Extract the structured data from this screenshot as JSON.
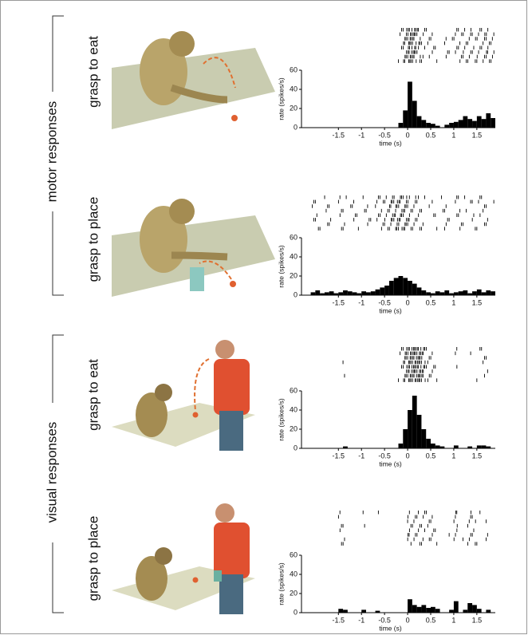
{
  "groups": [
    "motor responses",
    "visual responses"
  ],
  "chart_data": [
    {
      "type": "histogram",
      "title": "grasp to eat",
      "xlabel": "time (s)",
      "ylabel": "rate (spikes/s)",
      "color": "#000000",
      "bins": [
        -2.3,
        -2.2,
        -2.1,
        -2.0,
        -1.9,
        -1.8,
        -1.7,
        -1.6,
        -1.5,
        -1.4,
        -1.3,
        -1.2,
        -1.1,
        -1.0,
        -0.9,
        -0.8,
        -0.7,
        -0.6,
        -0.5,
        -0.4,
        -0.3,
        -0.2,
        -0.1,
        0.0,
        0.1,
        0.2,
        0.3,
        0.4,
        0.5,
        0.6,
        0.7,
        0.8,
        0.9,
        1.0,
        1.1,
        1.2,
        1.3,
        1.4,
        1.5,
        1.6,
        1.7,
        1.8,
        1.9
      ],
      "values": [
        0,
        0,
        0,
        0,
        0,
        0,
        0,
        0,
        0,
        0,
        0,
        0,
        0,
        0,
        0,
        0,
        0,
        0,
        0,
        0,
        0,
        5,
        18,
        48,
        28,
        12,
        8,
        5,
        4,
        2,
        0,
        3,
        5,
        6,
        8,
        12,
        9,
        7,
        12,
        9,
        15,
        10
      ],
      "xlim": [
        -2.3,
        1.9
      ],
      "ylim": [
        0,
        60
      ],
      "xticks": [
        -1.5,
        -1,
        -0.5,
        0,
        0.5,
        1,
        1.5
      ],
      "yticks": [
        0,
        20,
        40,
        60
      ]
    },
    {
      "type": "histogram",
      "title": "grasp to place",
      "xlabel": "time (s)",
      "ylabel": "rate (spikes/s)",
      "color": "#000000",
      "bins": [
        -2.3,
        -2.2,
        -2.1,
        -2.0,
        -1.9,
        -1.8,
        -1.7,
        -1.6,
        -1.5,
        -1.4,
        -1.3,
        -1.2,
        -1.1,
        -1.0,
        -0.9,
        -0.8,
        -0.7,
        -0.6,
        -0.5,
        -0.4,
        -0.3,
        -0.2,
        -0.1,
        0.0,
        0.1,
        0.2,
        0.3,
        0.4,
        0.5,
        0.6,
        0.7,
        0.8,
        0.9,
        1.0,
        1.1,
        1.2,
        1.3,
        1.4,
        1.5,
        1.6,
        1.7,
        1.8,
        1.9
      ],
      "values": [
        0,
        0,
        3,
        5,
        2,
        3,
        4,
        2,
        3,
        5,
        4,
        3,
        2,
        4,
        3,
        4,
        6,
        8,
        10,
        15,
        18,
        20,
        18,
        15,
        12,
        8,
        5,
        3,
        2,
        4,
        3,
        5,
        2,
        3,
        4,
        5,
        2,
        4,
        6,
        3,
        5,
        4
      ],
      "xlim": [
        -2.3,
        1.9
      ],
      "ylim": [
        0,
        60
      ],
      "xticks": [
        -1.5,
        -1,
        -0.5,
        0,
        0.5,
        1,
        1.5
      ],
      "yticks": [
        0,
        20,
        40,
        60
      ]
    },
    {
      "type": "histogram",
      "title": "grasp to eat",
      "xlabel": "time (s)",
      "ylabel": "rate (spikes/s)",
      "color": "#000000",
      "bins": [
        -2.3,
        -2.2,
        -2.1,
        -2.0,
        -1.9,
        -1.8,
        -1.7,
        -1.6,
        -1.5,
        -1.4,
        -1.3,
        -1.2,
        -1.1,
        -1.0,
        -0.9,
        -0.8,
        -0.7,
        -0.6,
        -0.5,
        -0.4,
        -0.3,
        -0.2,
        -0.1,
        0.0,
        0.1,
        0.2,
        0.3,
        0.4,
        0.5,
        0.6,
        0.7,
        0.8,
        0.9,
        1.0,
        1.1,
        1.2,
        1.3,
        1.4,
        1.5,
        1.6,
        1.7,
        1.8,
        1.9
      ],
      "values": [
        0,
        0,
        0,
        0,
        0,
        0,
        0,
        0,
        0,
        2,
        0,
        0,
        0,
        0,
        0,
        0,
        0,
        0,
        0,
        0,
        0,
        5,
        20,
        40,
        55,
        35,
        20,
        10,
        5,
        3,
        2,
        0,
        0,
        3,
        0,
        0,
        2,
        0,
        3,
        3,
        2,
        0
      ],
      "xlim": [
        -2.3,
        1.9
      ],
      "ylim": [
        0,
        60
      ],
      "xticks": [
        -1.5,
        -1,
        -0.5,
        0,
        0.5,
        1,
        1.5
      ],
      "yticks": [
        0,
        20,
        40,
        60
      ]
    },
    {
      "type": "histogram",
      "title": "grasp to place",
      "xlabel": "time (s)",
      "ylabel": "rate (spikes/s)",
      "color": "#000000",
      "bins": [
        -2.3,
        -2.2,
        -2.1,
        -2.0,
        -1.9,
        -1.8,
        -1.7,
        -1.6,
        -1.5,
        -1.4,
        -1.3,
        -1.2,
        -1.1,
        -1.0,
        -0.9,
        -0.8,
        -0.7,
        -0.6,
        -0.5,
        -0.4,
        -0.3,
        -0.2,
        -0.1,
        0.0,
        0.1,
        0.2,
        0.3,
        0.4,
        0.5,
        0.6,
        0.7,
        0.8,
        0.9,
        1.0,
        1.1,
        1.2,
        1.3,
        1.4,
        1.5,
        1.6,
        1.7,
        1.8,
        1.9
      ],
      "values": [
        0,
        0,
        0,
        0,
        0,
        0,
        0,
        0,
        4,
        3,
        0,
        0,
        0,
        3,
        0,
        0,
        2,
        0,
        0,
        0,
        0,
        0,
        0,
        14,
        8,
        6,
        8,
        5,
        6,
        4,
        0,
        0,
        3,
        12,
        0,
        3,
        10,
        8,
        4,
        0,
        3,
        0
      ],
      "xlim": [
        -2.3,
        1.9
      ],
      "ylim": [
        0,
        60
      ],
      "xticks": [
        -1.5,
        -1,
        -0.5,
        0,
        0.5,
        1,
        1.5
      ],
      "yticks": [
        0,
        20,
        40,
        60
      ]
    }
  ]
}
